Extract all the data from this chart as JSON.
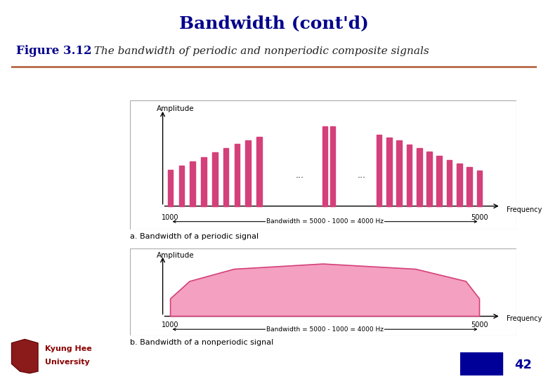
{
  "title": "Bandwidth (cont'd)",
  "title_bg": "#f2ccd8",
  "title_color": "#00008B",
  "fig_label": "Figure 3.12",
  "fig_caption": "  The bandwidth of periodic and nonperiodic composite signals",
  "caption_color": "#00008B",
  "bg_color": "#ffffff",
  "pink_bar_color": "#d4407a",
  "pink_fill_color": "#f4a0c0",
  "pink_outline_color": "#d4407a",
  "panel_border": "#999999",
  "label_a": "a. Bandwidth of a periodic signal",
  "label_b": "b. Bandwidth of a nonperiodic signal",
  "bandwidth_text": "Bandwidth = 5000 - 1000 = 4000 Hz",
  "freq_label": "Frequency",
  "amp_label": "Amplitude",
  "separator_color": "#b05a30",
  "blue_rect_color": "#000099",
  "page_number": "42",
  "univ_color": "#8B0000"
}
